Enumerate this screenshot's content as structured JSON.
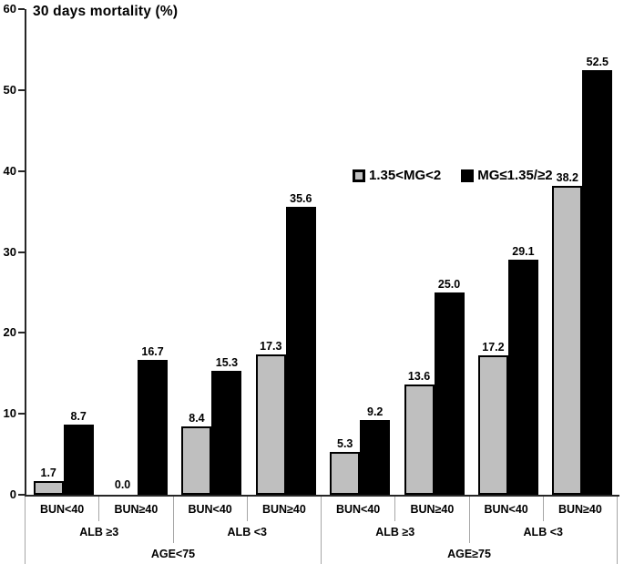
{
  "chart_data": {
    "type": "bar",
    "title": "30 days mortality (%)",
    "xlabel": "",
    "ylabel": "30 days mortality (%)",
    "ylim": [
      0,
      60
    ],
    "yticks": [
      0,
      10,
      20,
      30,
      40,
      50,
      60
    ],
    "grid": false,
    "legend_position": "inside-upper-middle-right",
    "colors": {
      "gray_series": "#bfbfbf",
      "black_series": "#000000",
      "axis_line": "#262626",
      "category_separator_line": "#a6a6a6",
      "text": "#000000",
      "background": "#ffffff"
    },
    "series": [
      {
        "name": "1.35<MG<2",
        "color": "#bfbfbf",
        "values": [
          1.7,
          0.0,
          8.4,
          17.3,
          5.3,
          13.6,
          17.2,
          38.2
        ]
      },
      {
        "name": "MG≤1.35/≥2",
        "color": "#000000",
        "values": [
          8.7,
          16.7,
          15.3,
          35.6,
          9.2,
          25.0,
          29.1,
          52.5
        ]
      }
    ],
    "value_label_decimals": 1,
    "category_levels": [
      {
        "name": "BUN",
        "labels": [
          "BUN<40",
          "BUN≥40",
          "BUN<40",
          "BUN≥40",
          "BUN<40",
          "BUN≥40",
          "BUN<40",
          "BUN≥40"
        ]
      },
      {
        "name": "ALB",
        "labels": [
          "ALB ≥3",
          "ALB <3",
          "ALB ≥3",
          "ALB <3"
        ]
      },
      {
        "name": "AGE",
        "labels": [
          "AGE<75",
          "AGE≥75"
        ]
      }
    ]
  }
}
